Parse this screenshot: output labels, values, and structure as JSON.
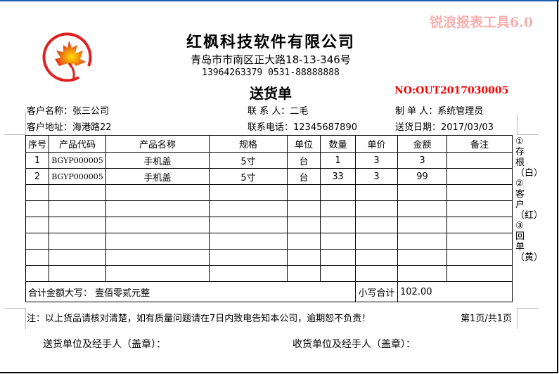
{
  "watermark": "锐浪报表工具6.0",
  "company": {
    "name": "红枫科技软件有限公司",
    "address": "青岛市市南区正大路18-13-346号",
    "phone": "13964263379 0531-88888888"
  },
  "document": {
    "title": "送货单",
    "number": "NO:OUT2017030005"
  },
  "info": {
    "customer_name": "客户名称：张三公司",
    "contact": "联 系 人：二毛",
    "creator": "制 单 人：系统管理员",
    "customer_address": "客户地址：海港路22",
    "contact_phone": "联系电话：12345687890",
    "delivery_date": "送货日期：2017/03/03"
  },
  "table": {
    "headers": [
      "序号",
      "产品代码",
      "产品名称",
      "规格",
      "单位",
      "数量",
      "单价",
      "金额",
      "备注"
    ],
    "rows": [
      [
        "1",
        "BGYP000005",
        "手机盖",
        "5寸",
        "台",
        "1",
        "3",
        "3",
        ""
      ],
      [
        "2",
        "BGYP000005",
        "手机盖",
        "5寸",
        "台",
        "33",
        "3",
        "99",
        ""
      ]
    ],
    "total_words_label": "合计金额大写：  壹佰零贰元整",
    "total_small_label": "小写合计",
    "total_small_value": "102.00"
  },
  "side_note": "①存根（白）②客户（红）③回单（黄）",
  "footer": {
    "note": "注：以上货品请核对清楚，如有质量问题请在7日内致电告知本公司，逾期恕不负责！",
    "page": "第1页/共1页",
    "sender_sign": "送货单位及经手人（盖章）：",
    "receiver_sign": "收货单位及经手人（盖章）："
  },
  "colors": {
    "accent_red": "#ff0000",
    "watermark": "#f7b0b0",
    "window_border": "#1c5fb0"
  }
}
